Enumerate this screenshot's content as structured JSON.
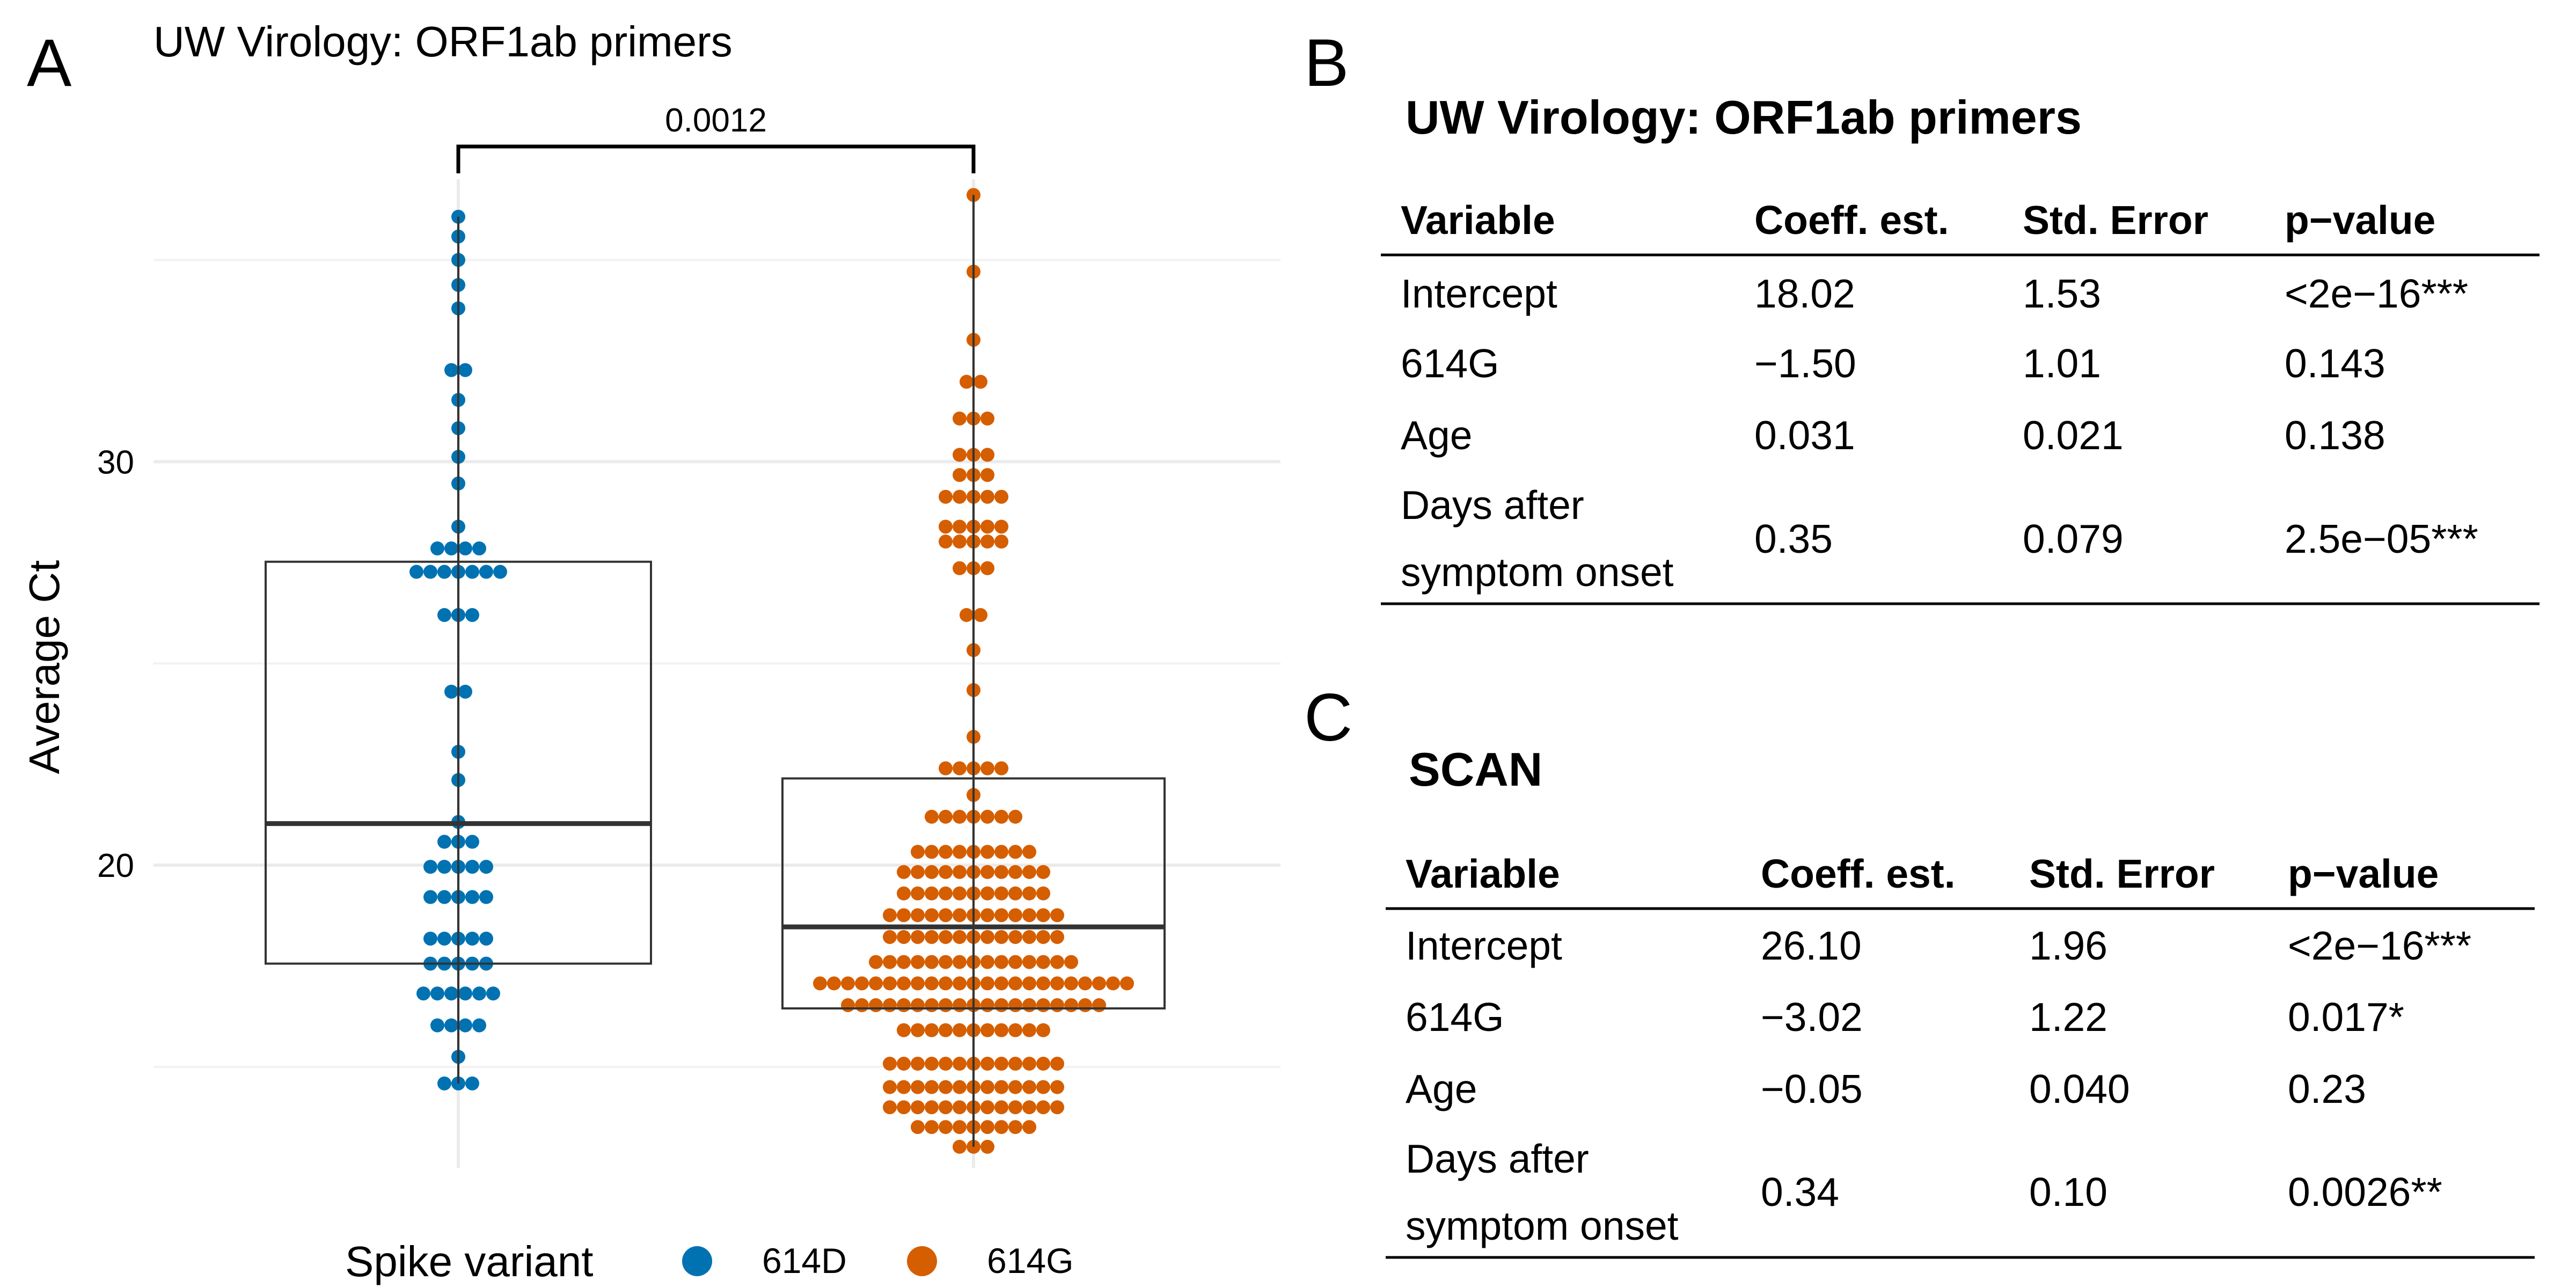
{
  "panel_labels": [
    "A",
    "B",
    "C"
  ],
  "chart_data": {
    "type": "beeswarm-box",
    "title": "UW Virology: ORF1ab primers",
    "y_label": "Average Ct",
    "legend_title": "Spike variant",
    "comparison_label": "0.0012",
    "ylim": [
      12.5,
      37
    ],
    "yticks": [
      20,
      30
    ],
    "minor_yticks": [
      15,
      25,
      35
    ],
    "grid": true,
    "series": [
      {
        "name": "614D",
        "color": "#0072B2",
        "box": {
          "whisker_low": 14.59,
          "q1": 17.56,
          "median": 21.03,
          "q3": 27.52,
          "whisker_high": 36.07
        },
        "values": [
          36.07,
          35.58,
          35.0,
          34.38,
          33.8,
          32.27,
          32.27,
          31.53,
          30.83,
          30.12,
          29.46,
          28.39,
          27.85,
          27.85,
          27.85,
          27.85,
          27.27,
          27.27,
          27.27,
          27.27,
          27.27,
          27.27,
          27.27,
          26.2,
          26.2,
          26.2,
          24.3,
          24.3,
          22.81,
          22.11,
          21.07,
          20.58,
          20.58,
          20.58,
          19.96,
          19.96,
          19.96,
          19.96,
          19.96,
          19.21,
          19.21,
          19.21,
          19.21,
          19.21,
          18.18,
          18.18,
          18.18,
          18.18,
          18.18,
          17.56,
          17.56,
          17.56,
          17.56,
          17.56,
          16.82,
          16.82,
          16.82,
          16.82,
          16.82,
          16.82,
          16.03,
          16.03,
          16.03,
          16.03,
          15.25,
          14.59,
          14.59,
          14.59
        ]
      },
      {
        "name": "614G",
        "color": "#D55E00",
        "box": {
          "whisker_low": 13.02,
          "q1": 16.45,
          "median": 18.47,
          "q3": 22.15,
          "whisker_high": 36.61
        },
        "values": [
          36.61,
          34.71,
          33.02,
          31.98,
          31.98,
          31.07,
          31.07,
          31.07,
          30.17,
          30.17,
          30.17,
          29.67,
          29.67,
          29.67,
          29.13,
          29.13,
          29.13,
          29.13,
          29.13,
          28.39,
          28.39,
          28.39,
          28.39,
          28.39,
          28.02,
          28.02,
          28.02,
          28.02,
          28.02,
          27.36,
          27.36,
          27.36,
          26.2,
          26.2,
          25.33,
          24.34,
          23.18,
          22.4,
          22.4,
          22.4,
          22.4,
          22.4,
          21.74,
          21.2,
          21.2,
          21.2,
          21.2,
          21.2,
          21.2,
          21.2,
          20.33,
          20.33,
          20.33,
          20.33,
          20.33,
          20.33,
          20.33,
          20.33,
          20.33,
          19.83,
          19.83,
          19.83,
          19.83,
          19.83,
          19.83,
          19.83,
          19.83,
          19.83,
          19.83,
          19.83,
          19.3,
          19.3,
          19.3,
          19.3,
          19.3,
          19.3,
          19.3,
          19.3,
          19.3,
          19.3,
          19.3,
          18.76,
          18.76,
          18.76,
          18.76,
          18.76,
          18.76,
          18.76,
          18.76,
          18.76,
          18.76,
          18.76,
          18.76,
          18.76,
          18.22,
          18.22,
          18.22,
          18.22,
          18.22,
          18.22,
          18.22,
          18.22,
          18.22,
          18.22,
          18.22,
          18.22,
          18.22,
          17.6,
          17.6,
          17.6,
          17.6,
          17.6,
          17.6,
          17.6,
          17.6,
          17.6,
          17.6,
          17.6,
          17.6,
          17.6,
          17.6,
          17.6,
          17.07,
          17.07,
          17.07,
          17.07,
          17.07,
          17.07,
          17.07,
          17.07,
          17.07,
          17.07,
          17.07,
          17.07,
          17.07,
          17.07,
          17.07,
          17.07,
          17.07,
          17.07,
          17.07,
          17.07,
          17.07,
          17.07,
          17.07,
          16.53,
          16.53,
          16.53,
          16.53,
          16.53,
          16.53,
          16.53,
          16.53,
          16.53,
          16.53,
          16.53,
          16.53,
          16.53,
          16.53,
          16.53,
          16.53,
          16.53,
          16.53,
          16.53,
          15.91,
          15.91,
          15.91,
          15.91,
          15.91,
          15.91,
          15.91,
          15.91,
          15.91,
          15.91,
          15.91,
          15.08,
          15.08,
          15.08,
          15.08,
          15.08,
          15.08,
          15.08,
          15.08,
          15.08,
          15.08,
          15.08,
          15.08,
          15.08,
          14.5,
          14.5,
          14.5,
          14.5,
          14.5,
          14.5,
          14.5,
          14.5,
          14.5,
          14.5,
          14.5,
          14.5,
          14.5,
          14.0,
          14.0,
          14.0,
          14.0,
          14.0,
          14.0,
          14.0,
          14.0,
          14.0,
          14.0,
          14.0,
          14.0,
          14.0,
          13.51,
          13.51,
          13.51,
          13.51,
          13.51,
          13.51,
          13.51,
          13.51,
          13.51,
          13.02,
          13.02,
          13.02
        ]
      }
    ]
  },
  "tables": [
    {
      "title": "UW Virology: ORF1ab primers",
      "header": [
        "Variable",
        "Coeff. est.",
        "Std. Error",
        "p−value"
      ],
      "rows": [
        [
          "Intercept",
          "18.02",
          "1.53",
          "<2e−16***"
        ],
        [
          "614G",
          "−1.50",
          "1.01",
          "0.143"
        ],
        [
          "Age",
          "0.031",
          "0.021",
          "0.138"
        ],
        [
          [
            "Days after",
            "symptom onset"
          ],
          "0.35",
          "0.079",
          "2.5e−05***"
        ]
      ]
    },
    {
      "title": "SCAN",
      "header": [
        "Variable",
        "Coeff. est.",
        "Std. Error",
        "p−value"
      ],
      "rows": [
        [
          "Intercept",
          "26.10",
          "1.96",
          "<2e−16***"
        ],
        [
          "614G",
          "−3.02",
          "1.22",
          "0.017*"
        ],
        [
          "Age",
          "−0.05",
          "0.040",
          "0.23"
        ],
        [
          [
            "Days after",
            "symptom onset"
          ],
          "0.34",
          "0.10",
          "0.0026**"
        ]
      ]
    }
  ]
}
